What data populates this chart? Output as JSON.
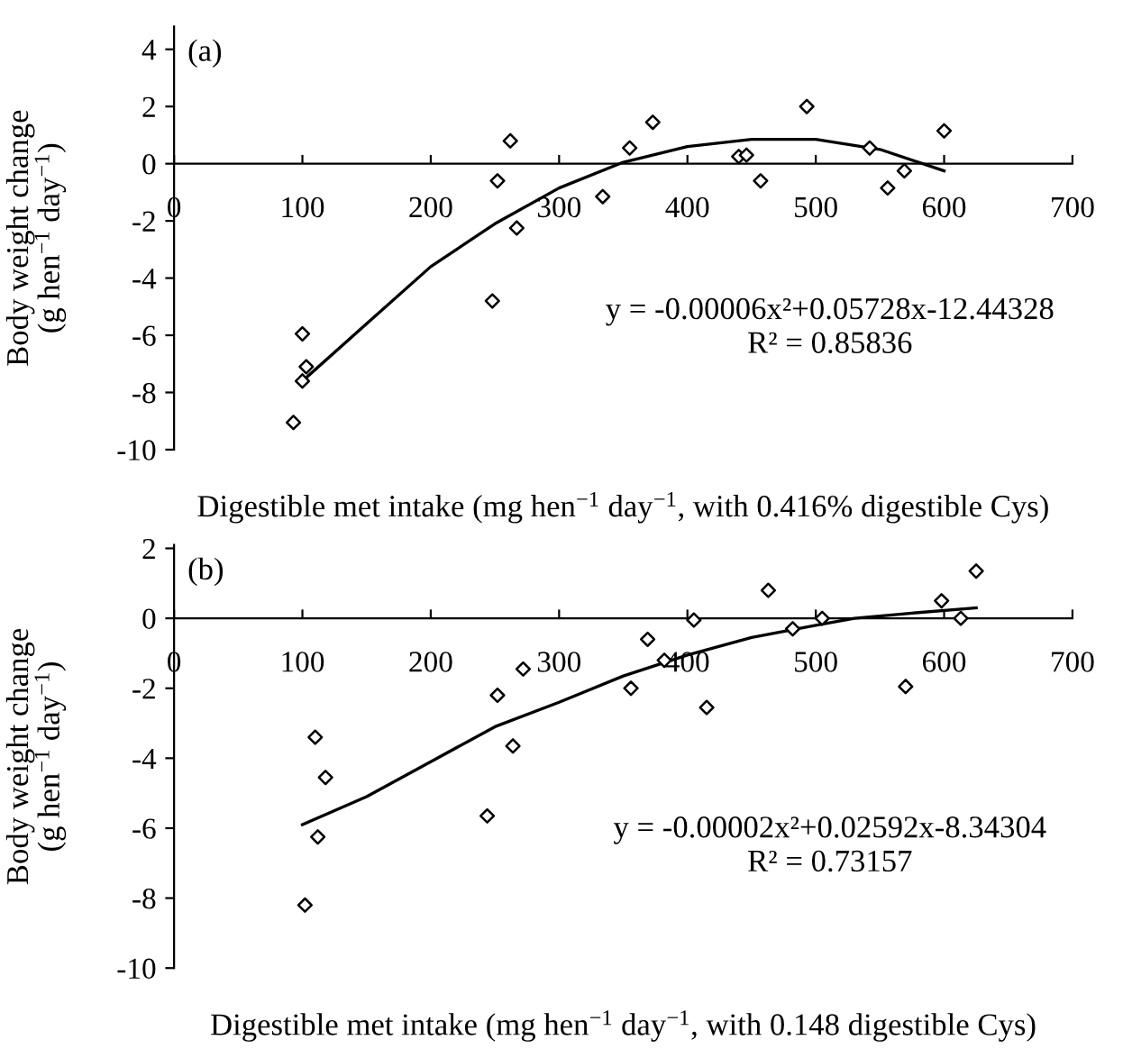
{
  "chart_data": [
    {
      "type": "scatter",
      "xlabel": "Digestible met intake (mg hen$^{−1}$ day$^{−1}$, with 0.416% digestible Cys)",
      "ylabel": "Body weight change\n(g hen$^{−1}$ day$^{−1}$)",
      "xlim": [
        0,
        700
      ],
      "xticks": [
        0,
        100,
        200,
        300,
        400,
        500,
        600,
        700
      ],
      "ylim": [
        -10,
        4.8
      ],
      "yticks": [
        -10,
        -8,
        -6,
        -4,
        -2,
        0,
        2,
        4
      ],
      "grid": false,
      "legend": false,
      "annotations": [
        "(a)",
        "y = -0.00006x²+0.05728x-12.44328",
        "R² = 0.85836"
      ],
      "series": [
        {
          "color": "#000000",
          "marker": "diamond",
          "x": [
            93,
            100,
            100,
            103,
            248,
            252,
            262,
            267,
            334,
            355,
            373,
            440,
            446,
            457,
            493,
            542,
            556,
            569,
            600
          ],
          "values": [
            -9.05,
            -7.6,
            -5.95,
            -7.1,
            -4.8,
            -0.6,
            0.8,
            -2.25,
            -1.15,
            0.55,
            1.45,
            0.25,
            0.3,
            -0.6,
            2.0,
            0.55,
            -0.85,
            -0.25,
            1.15
          ]
        },
        {
          "type": "line",
          "color": "#000000",
          "marker": "none",
          "line_style": "solid",
          "x": [
            100,
            150,
            200,
            250,
            300,
            350,
            400,
            450,
            500,
            550,
            600
          ],
          "values": [
            -7.6,
            -5.6,
            -3.6,
            -2.1,
            -0.85,
            0.05,
            0.6,
            0.85,
            0.85,
            0.5,
            -0.25
          ]
        }
      ]
    },
    {
      "type": "scatter",
      "xlabel": "Digestible met intake (mg hen$^{−1}$ day$^{−1}$, with 0.148 digestible Cys)",
      "ylabel": "Body weight change\n(g hen$^{−1}$ day$^{−1}$)",
      "xlim": [
        0,
        700
      ],
      "xticks": [
        0,
        100,
        200,
        300,
        400,
        500,
        600,
        700
      ],
      "ylim": [
        -10,
        2.1
      ],
      "yticks": [
        -10,
        -8,
        -6,
        -4,
        -2,
        0,
        2
      ],
      "grid": false,
      "legend": false,
      "annotations": [
        "(b)",
        "y = -0.00002x²+0.02592x-8.34304",
        "R² = 0.73157"
      ],
      "series": [
        {
          "color": "#000000",
          "marker": "diamond",
          "x": [
            102,
            110,
            112,
            118,
            244,
            252,
            264,
            272,
            356,
            369,
            382,
            405,
            415,
            463,
            482,
            505,
            570,
            598,
            613,
            625
          ],
          "values": [
            -8.2,
            -3.4,
            -6.25,
            -4.55,
            -5.65,
            -2.2,
            -3.65,
            -1.45,
            -2.0,
            -0.6,
            -1.2,
            -0.05,
            -2.55,
            0.8,
            -0.3,
            0.0,
            -1.95,
            0.5,
            0.0,
            1.35
          ]
        },
        {
          "type": "line",
          "color": "#000000",
          "marker": "none",
          "line_style": "solid",
          "x": [
            100,
            150,
            200,
            250,
            300,
            350,
            400,
            450,
            500,
            530,
            575,
            625
          ],
          "values": [
            -5.9,
            -5.1,
            -4.1,
            -3.1,
            -2.4,
            -1.65,
            -1.05,
            -0.55,
            -0.2,
            0.0,
            0.15,
            0.3
          ]
        }
      ]
    }
  ]
}
